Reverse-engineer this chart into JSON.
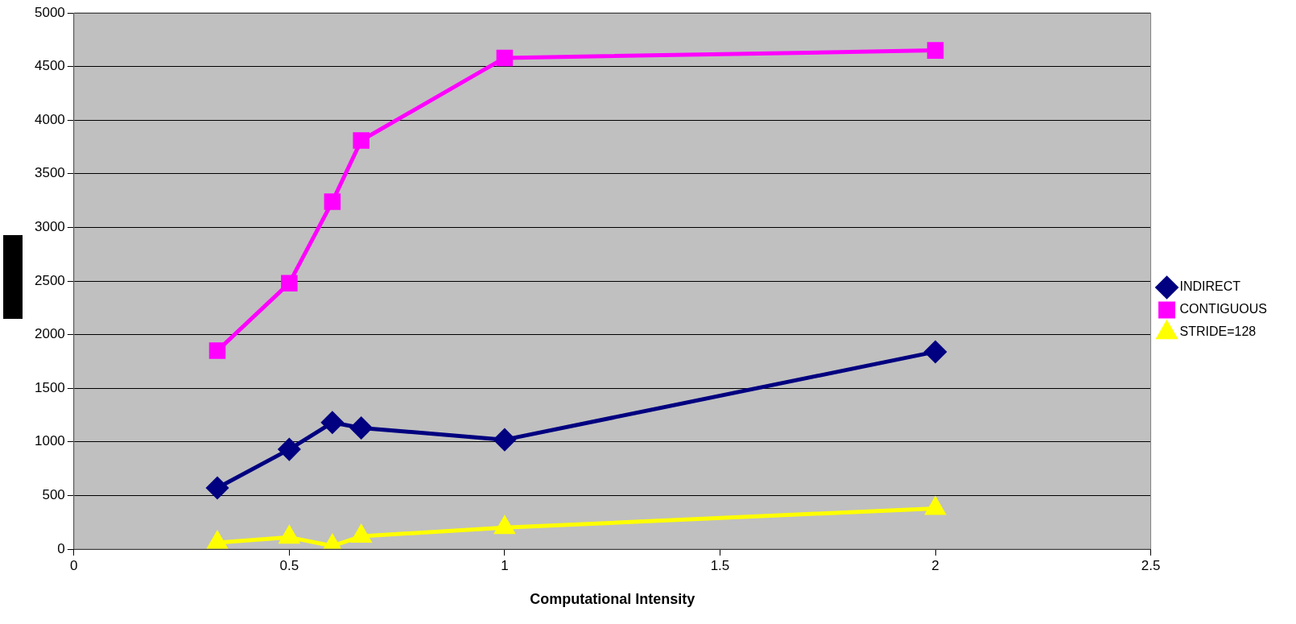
{
  "chart_data": {
    "type": "line",
    "xlabel": "Computational Intensity",
    "xlim": [
      0,
      2.5
    ],
    "xticks": [
      0,
      0.5,
      1,
      1.5,
      2,
      2.5
    ],
    "ylim": [
      0,
      5000
    ],
    "yticks": [
      0,
      500,
      1000,
      1500,
      2000,
      2500,
      3000,
      3500,
      4000,
      4500,
      5000
    ],
    "grid": "y",
    "legend": "right",
    "x": [
      0.333,
      0.5,
      0.6,
      0.667,
      1,
      2
    ],
    "series": [
      {
        "name": "INDIRECT",
        "color": "#000080",
        "marker": "diamond",
        "values": [
          570,
          930,
          1180,
          1130,
          1020,
          1840
        ]
      },
      {
        "name": "CONTIGUOUS",
        "color": "#ff00ff",
        "marker": "square",
        "values": [
          1850,
          2480,
          3240,
          3810,
          4580,
          4650
        ]
      },
      {
        "name": "STRIDE=128",
        "color": "#ffff00",
        "marker": "triangle",
        "values": [
          60,
          110,
          30,
          120,
          200,
          380
        ]
      }
    ]
  }
}
